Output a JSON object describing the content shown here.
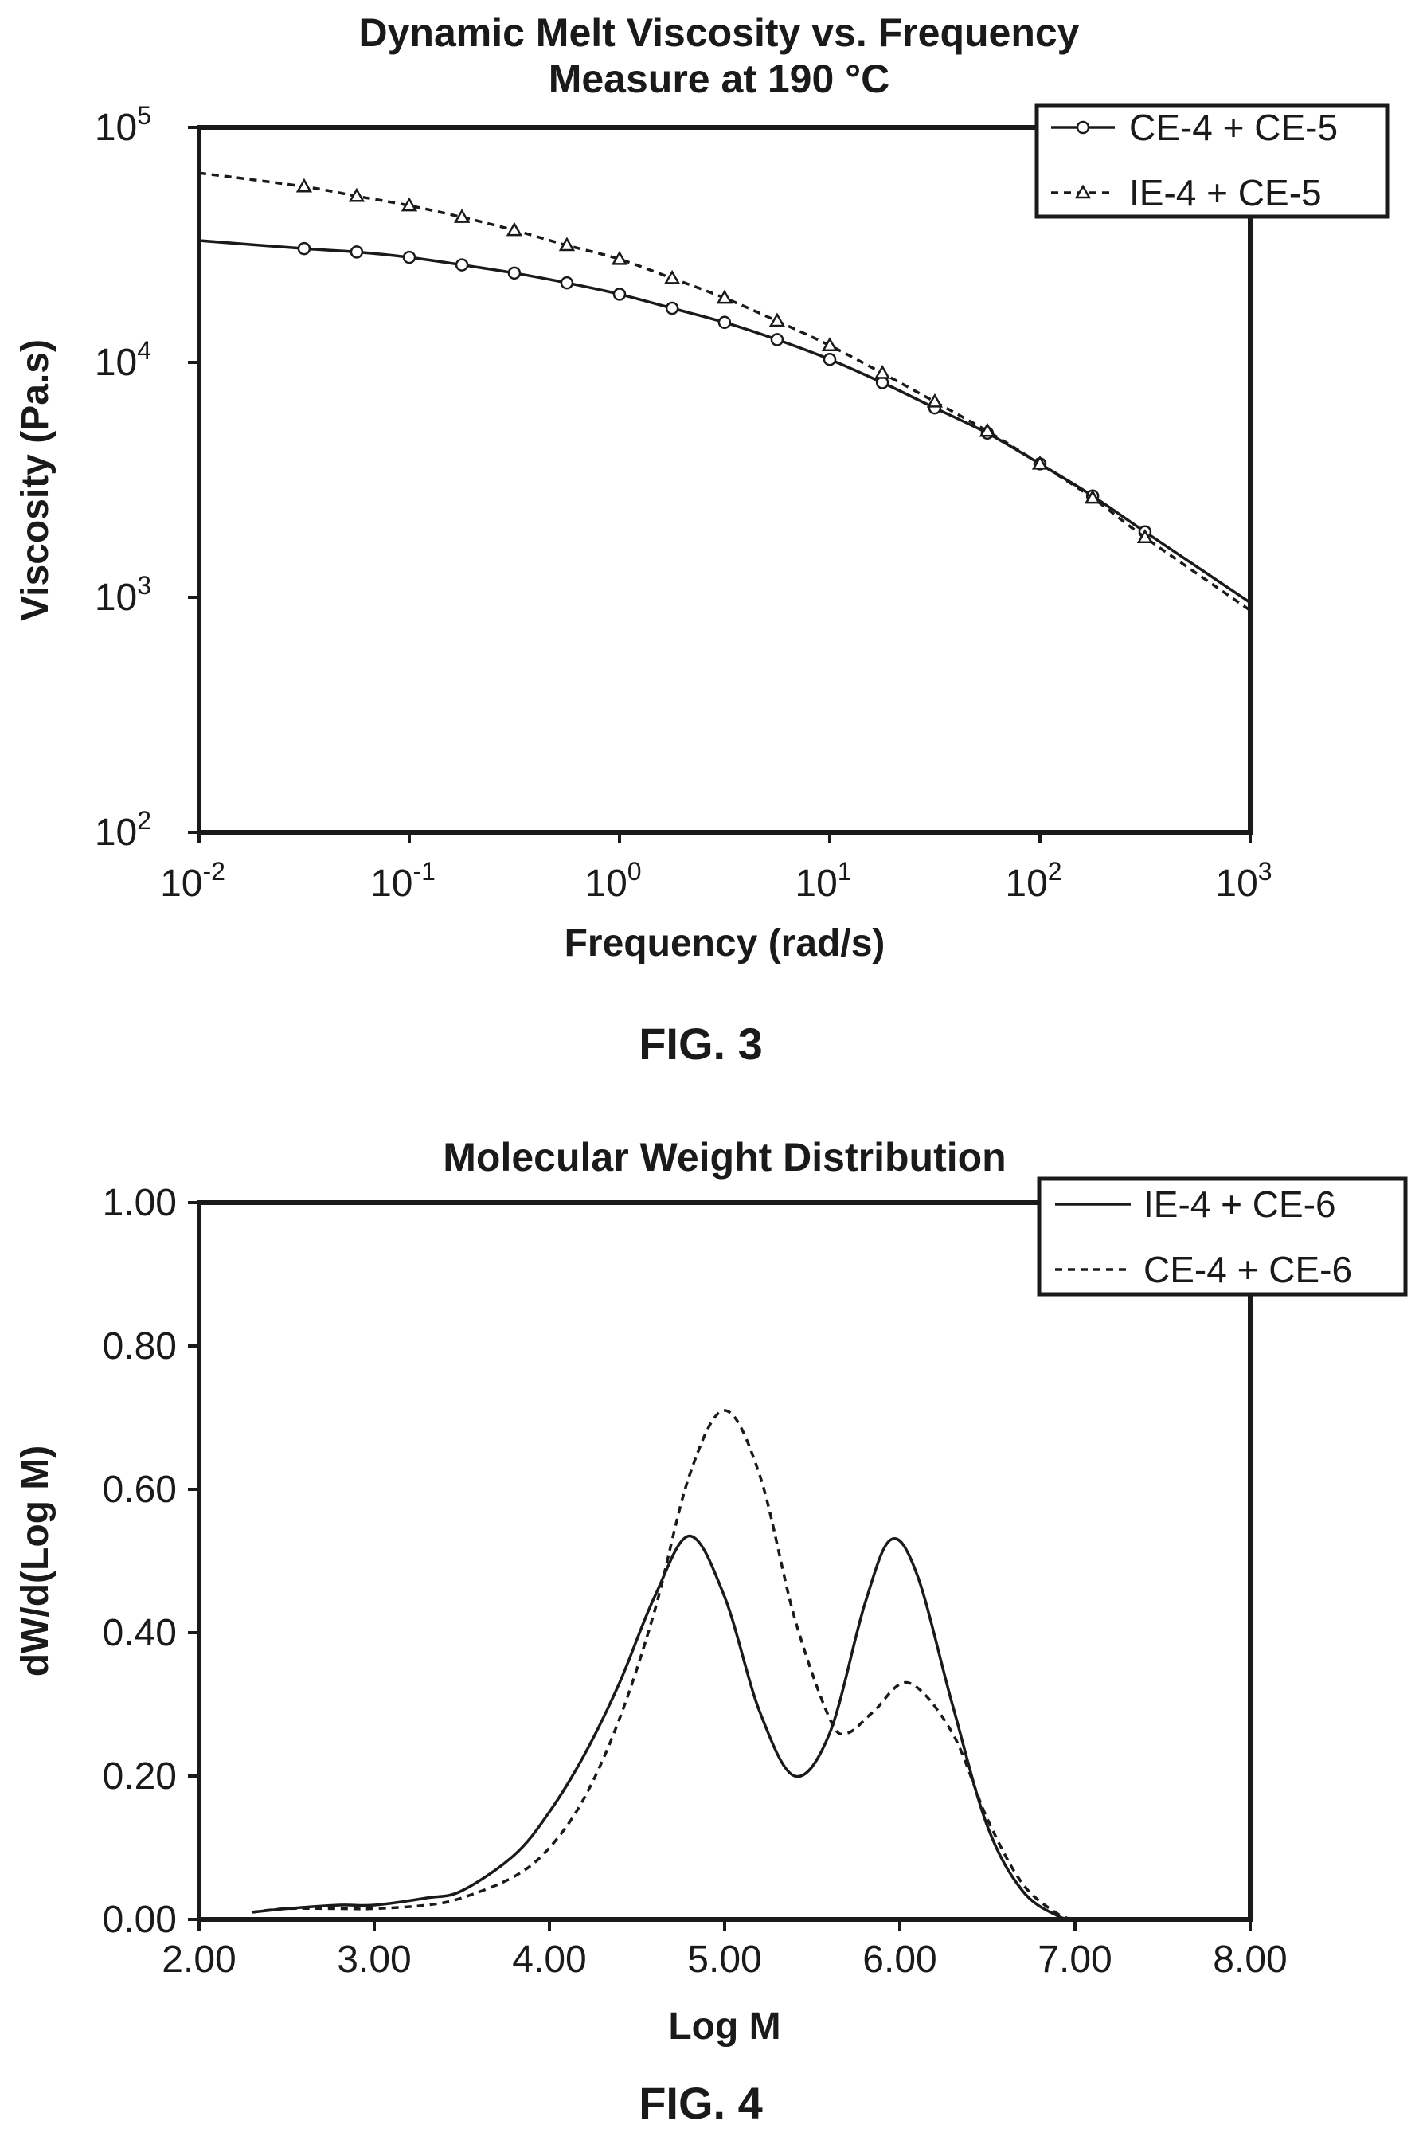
{
  "charts": [
    {
      "figure_label": "FIG. 3",
      "chart_data": {
        "type": "line",
        "title": "Dynamic Melt Viscosity vs. Frequency",
        "subtitle": "Measure at 190 °C",
        "xlabel": "Frequency (rad/s)",
        "ylabel": "Viscosity (Pa.s)",
        "x_scale": "log",
        "y_scale": "log",
        "xlim": [
          0.01,
          1000
        ],
        "ylim": [
          100,
          100000
        ],
        "x_ticks": [
          {
            "base": "10",
            "exp": "-2",
            "value": 0.01
          },
          {
            "base": "10",
            "exp": "-1",
            "value": 0.1
          },
          {
            "base": "10",
            "exp": "0",
            "value": 1
          },
          {
            "base": "10",
            "exp": "1",
            "value": 10
          },
          {
            "base": "10",
            "exp": "2",
            "value": 100
          },
          {
            "base": "10",
            "exp": "3",
            "value": 1000
          }
        ],
        "y_ticks": [
          {
            "base": "10",
            "exp": "2",
            "value": 100
          },
          {
            "base": "10",
            "exp": "3",
            "value": 1000
          },
          {
            "base": "10",
            "exp": "4",
            "value": 10000
          },
          {
            "base": "10",
            "exp": "5",
            "value": 100000
          }
        ],
        "grid": false,
        "legend_position": "top-right",
        "series": [
          {
            "name": "CE-4 + CE-5",
            "line_style": "solid",
            "marker": "circle",
            "x": [
              0.01,
              0.0316,
              0.0562,
              0.1,
              0.178,
              0.316,
              0.562,
              1,
              1.78,
              3.16,
              5.62,
              10,
              17.8,
              31.6,
              56.2,
              100,
              178,
              316,
              1000
            ],
            "y": [
              33000,
              30500,
              29500,
              28000,
              26000,
              24000,
              21800,
              19500,
              17000,
              14800,
              12500,
              10300,
              8200,
              6400,
              5000,
              3700,
              2700,
              1900,
              950
            ],
            "markers": [
              false,
              true,
              true,
              true,
              true,
              true,
              true,
              true,
              true,
              true,
              true,
              true,
              true,
              true,
              true,
              true,
              true,
              true,
              false
            ]
          },
          {
            "name": "IE-4 + CE-5",
            "line_style": "dashed",
            "marker": "triangle",
            "x": [
              0.01,
              0.0316,
              0.0562,
              0.1,
              0.178,
              0.316,
              0.562,
              1,
              1.78,
              3.16,
              5.62,
              10,
              17.8,
              31.6,
              56.2,
              100,
              178,
              316,
              1000
            ],
            "y": [
              64000,
              56000,
              51000,
              46500,
              41500,
              36500,
              31500,
              27500,
              22800,
              18800,
              15000,
              11800,
              9000,
              6800,
              5100,
              3700,
              2650,
              1800,
              880
            ],
            "markers": [
              false,
              true,
              true,
              true,
              true,
              true,
              true,
              true,
              true,
              true,
              true,
              true,
              true,
              true,
              true,
              true,
              true,
              true,
              false
            ]
          }
        ]
      }
    },
    {
      "figure_label": "FIG. 4",
      "chart_data": {
        "type": "line",
        "title": "Molecular Weight Distribution",
        "xlabel": "Log M",
        "ylabel": "dW/d(Log M)",
        "xlim": [
          2.0,
          8.0
        ],
        "ylim": [
          0.0,
          1.0
        ],
        "x_ticks": [
          "2.00",
          "3.00",
          "4.00",
          "5.00",
          "6.00",
          "7.00",
          "8.00"
        ],
        "y_ticks": [
          "0.00",
          "0.20",
          "0.40",
          "0.60",
          "0.80",
          "1.00"
        ],
        "grid": false,
        "legend_position": "top-right",
        "series": [
          {
            "name": "IE-4 + CE-6",
            "line_style": "solid",
            "x": [
              2.3,
              2.5,
              2.8,
              3.0,
              3.3,
              3.5,
              3.8,
              4.0,
              4.2,
              4.4,
              4.6,
              4.8,
              5.0,
              5.2,
              5.4,
              5.6,
              5.8,
              5.95,
              6.1,
              6.3,
              6.5,
              6.7,
              6.9,
              7.0
            ],
            "y": [
              0.01,
              0.015,
              0.02,
              0.02,
              0.03,
              0.04,
              0.09,
              0.15,
              0.23,
              0.33,
              0.45,
              0.535,
              0.45,
              0.29,
              0.2,
              0.26,
              0.44,
              0.53,
              0.48,
              0.3,
              0.13,
              0.04,
              0.005,
              0.0
            ]
          },
          {
            "name": "CE-4 + CE-6",
            "line_style": "dashed",
            "x": [
              2.3,
              2.5,
              2.8,
              3.0,
              3.3,
              3.5,
              3.8,
              4.0,
              4.2,
              4.4,
              4.6,
              4.8,
              5.0,
              5.2,
              5.4,
              5.6,
              5.7,
              5.85,
              6.05,
              6.3,
              6.5,
              6.7,
              6.9,
              7.0
            ],
            "y": [
              0.01,
              0.015,
              0.015,
              0.015,
              0.02,
              0.03,
              0.06,
              0.1,
              0.17,
              0.28,
              0.43,
              0.62,
              0.71,
              0.62,
              0.42,
              0.28,
              0.26,
              0.29,
              0.33,
              0.26,
              0.14,
              0.05,
              0.008,
              0.0
            ]
          }
        ]
      }
    }
  ]
}
